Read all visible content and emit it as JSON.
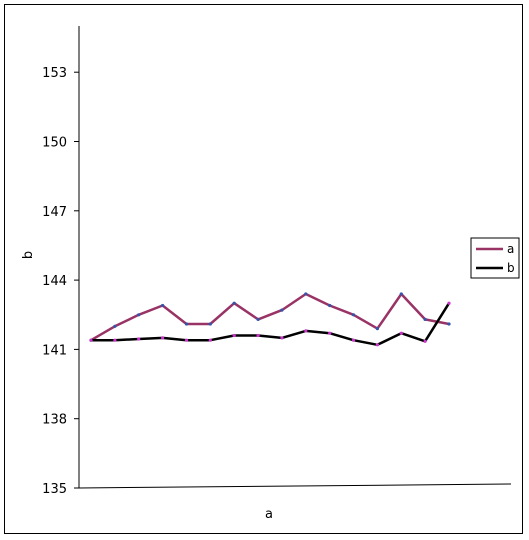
{
  "chart_data": {
    "type": "line",
    "title": "",
    "xlabel": "a",
    "ylabel": "b",
    "ylim": [
      135,
      155
    ],
    "yticks": [
      135,
      138,
      141,
      144,
      147,
      150,
      153
    ],
    "x": [
      1,
      2,
      3,
      4,
      5,
      6,
      7,
      8,
      9,
      10,
      11,
      12,
      13,
      14,
      15,
      16
    ],
    "series": [
      {
        "name": "a",
        "color": "#993366",
        "values": [
          141.4,
          142.0,
          142.5,
          142.9,
          142.1,
          142.1,
          143.0,
          142.3,
          142.7,
          143.4,
          142.9,
          142.5,
          141.9,
          143.4,
          142.3,
          142.1
        ]
      },
      {
        "name": "b",
        "color": "#000000",
        "values": [
          141.4,
          141.4,
          141.45,
          141.5,
          141.4,
          141.4,
          141.6,
          141.6,
          141.5,
          141.8,
          141.7,
          141.4,
          141.2,
          141.7,
          141.35,
          143.0
        ]
      }
    ],
    "legend": "right",
    "grid": false
  }
}
